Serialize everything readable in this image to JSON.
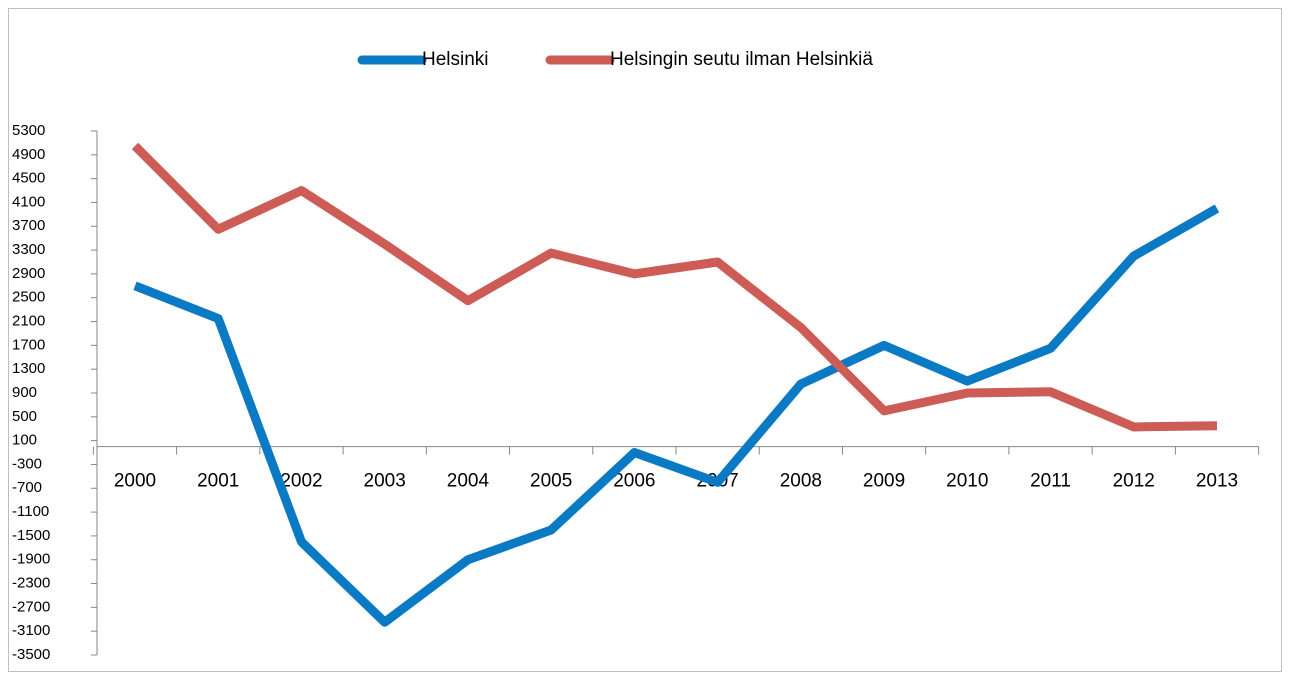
{
  "chart_data": {
    "type": "line",
    "categories": [
      "2000",
      "2001",
      "2002",
      "2003",
      "2004",
      "2005",
      "2006",
      "2007",
      "2008",
      "2009",
      "2010",
      "2011",
      "2012",
      "2013"
    ],
    "series": [
      {
        "name": "Helsinki",
        "color": "#0a7ac4",
        "values": [
          2700,
          2150,
          -1600,
          -2950,
          -1900,
          -1400,
          -100,
          -600,
          1050,
          1700,
          1100,
          1650,
          3200,
          4000
        ]
      },
      {
        "name": "Helsingin seutu ilman Helsinkiä",
        "color": "#cd5c57",
        "values": [
          5050,
          3650,
          4300,
          3400,
          2450,
          3250,
          2900,
          3100,
          2000,
          600,
          900,
          920,
          330,
          350
        ]
      }
    ],
    "ylim": [
      -3500,
      5300
    ],
    "yticks": [
      5300,
      4900,
      4500,
      4100,
      3700,
      3300,
      2900,
      2500,
      2100,
      1700,
      1300,
      900,
      500,
      100,
      -300,
      -700,
      -1100,
      -1500,
      -1900,
      -2300,
      -2700,
      -3100,
      -3500
    ],
    "legend": "top"
  }
}
